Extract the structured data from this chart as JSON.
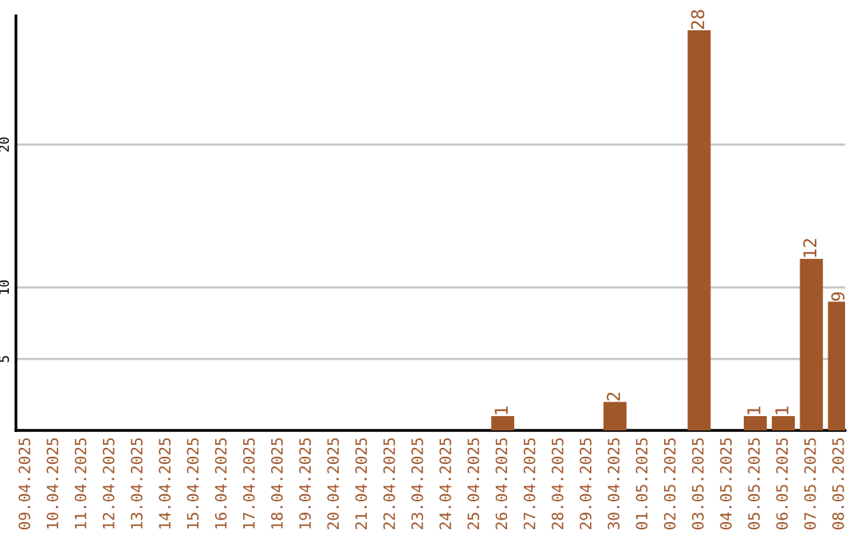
{
  "chart_data": {
    "type": "bar",
    "categories": [
      "09.04.2025",
      "10.04.2025",
      "11.04.2025",
      "12.04.2025",
      "13.04.2025",
      "14.04.2025",
      "15.04.2025",
      "16.04.2025",
      "17.04.2025",
      "18.04.2025",
      "19.04.2025",
      "20.04.2025",
      "21.04.2025",
      "22.04.2025",
      "23.04.2025",
      "24.04.2025",
      "25.04.2025",
      "26.04.2025",
      "27.04.2025",
      "28.04.2025",
      "29.04.2025",
      "30.04.2025",
      "01.05.2025",
      "02.05.2025",
      "03.05.2025",
      "04.05.2025",
      "05.05.2025",
      "06.05.2025",
      "07.05.2025",
      "08.05.2025"
    ],
    "values": [
      0,
      0,
      0,
      0,
      0,
      0,
      0,
      0,
      0,
      0,
      0,
      0,
      0,
      0,
      0,
      0,
      0,
      1,
      0,
      0,
      0,
      2,
      0,
      0,
      28,
      0,
      1,
      1,
      12,
      9
    ],
    "value_labels": [
      null,
      null,
      null,
      null,
      null,
      null,
      null,
      null,
      null,
      null,
      null,
      null,
      null,
      null,
      null,
      null,
      null,
      "1",
      null,
      null,
      null,
      "2",
      null,
      null,
      "28",
      null,
      "1",
      "1",
      "12",
      "9"
    ],
    "color": "#a0572a",
    "ylim": [
      0,
      29
    ],
    "yticks": [
      5,
      10,
      20
    ],
    "grid": "y"
  }
}
